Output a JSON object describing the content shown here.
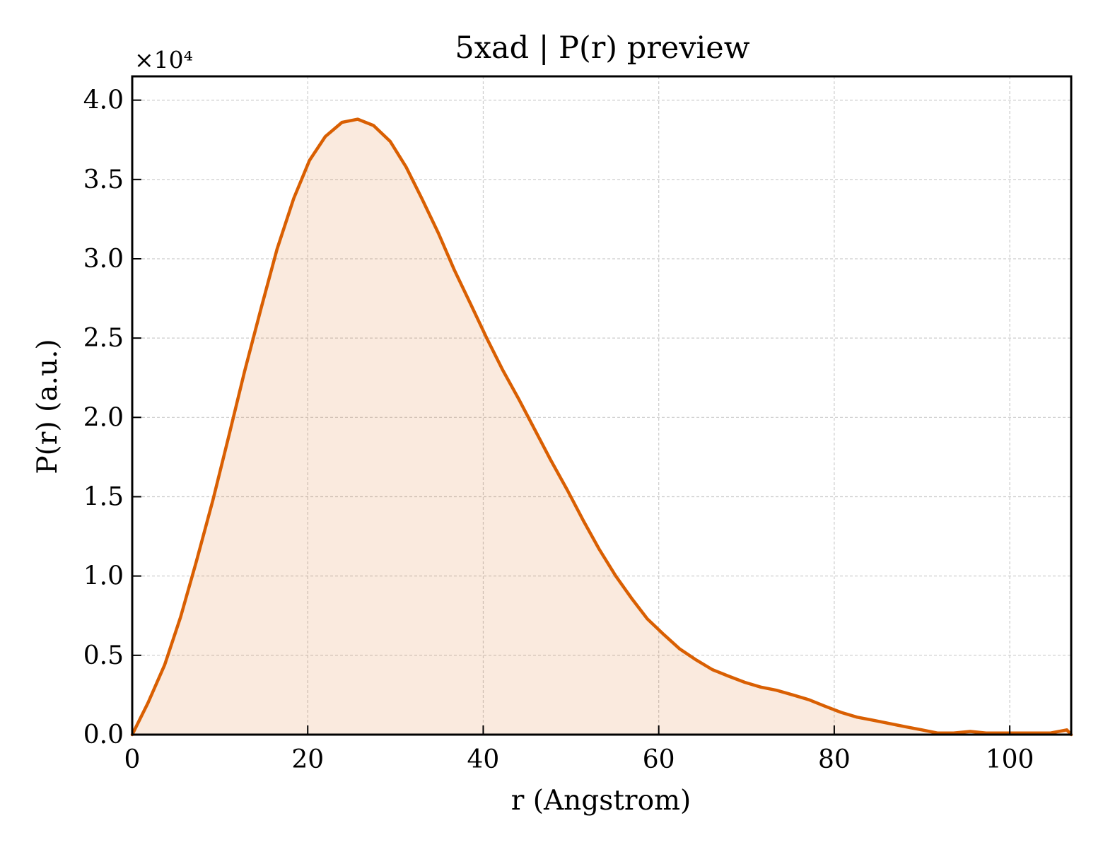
{
  "chart_data": {
    "type": "area",
    "title": "5xad | P(r) preview",
    "xlabel": "r (Angstrom)",
    "ylabel": "P(r) (a.u.)",
    "y_offset_label": "×10⁴",
    "xlim": [
      0,
      107
    ],
    "ylim": [
      0,
      4.15
    ],
    "xticks": [
      0,
      20,
      40,
      60,
      80,
      100
    ],
    "xtick_labels": [
      "0",
      "20",
      "40",
      "60",
      "80",
      "100"
    ],
    "yticks": [
      0,
      0.5,
      1.0,
      1.5,
      2.0,
      2.5,
      3.0,
      3.5,
      4.0
    ],
    "ytick_labels": [
      "0.0",
      "0.5",
      "1.0",
      "1.5",
      "2.0",
      "2.5",
      "3.0",
      "3.5",
      "4.0"
    ],
    "grid": true,
    "color": "#d95f02",
    "fill_color": "#d95f02",
    "series": [
      {
        "x": [
          0,
          1.8,
          3.7,
          5.5,
          7.3,
          9.2,
          11.0,
          12.8,
          14.7,
          16.5,
          18.4,
          20.2,
          22.0,
          23.9,
          25.7,
          27.5,
          29.4,
          31.2,
          33.0,
          34.9,
          36.7,
          38.6,
          40.4,
          42.2,
          44.1,
          45.9,
          47.7,
          49.6,
          51.4,
          53.2,
          55.1,
          56.9,
          58.7,
          60.6,
          62.4,
          64.3,
          66.1,
          67.9,
          69.8,
          71.6,
          73.4,
          75.3,
          77.1,
          78.9,
          80.8,
          82.6,
          84.5,
          86.3,
          88.1,
          90.0,
          91.8,
          93.6,
          95.5,
          97.3,
          99.1,
          101.0,
          102.8,
          104.6,
          106.5,
          107
        ],
        "y": [
          0.0,
          0.2,
          0.44,
          0.74,
          1.09,
          1.48,
          1.88,
          2.29,
          2.69,
          3.06,
          3.38,
          3.62,
          3.77,
          3.86,
          3.88,
          3.84,
          3.74,
          3.58,
          3.38,
          3.16,
          2.93,
          2.71,
          2.5,
          2.3,
          2.11,
          1.92,
          1.73,
          1.54,
          1.35,
          1.17,
          1.0,
          0.86,
          0.73,
          0.63,
          0.54,
          0.47,
          0.41,
          0.37,
          0.33,
          0.3,
          0.28,
          0.25,
          0.22,
          0.18,
          0.14,
          0.11,
          0.09,
          0.07,
          0.05,
          0.03,
          0.01,
          0.01,
          0.02,
          0.01,
          0.01,
          0.01,
          0.01,
          0.01,
          0.03,
          0.0
        ]
      }
    ]
  }
}
